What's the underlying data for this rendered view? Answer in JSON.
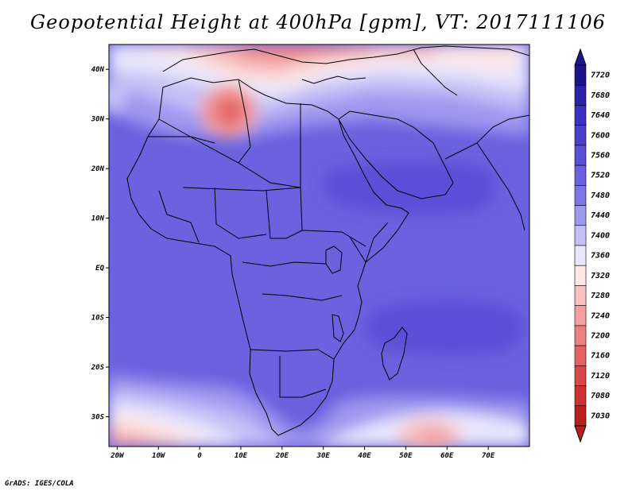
{
  "title": "Geopotential Height at 400hPa [gpm], VT: 2017111106",
  "credit": "GrADS: IGES/COLA",
  "map": {
    "lat_labels": [
      "40N",
      "30N",
      "20N",
      "10N",
      "EQ",
      "10S",
      "20S",
      "30S"
    ],
    "lat_values": [
      40,
      30,
      20,
      10,
      0,
      -10,
      -20,
      -30
    ],
    "lon_labels": [
      "20W",
      "10W",
      "0",
      "10E",
      "20E",
      "30E",
      "40E",
      "50E",
      "60E",
      "70E"
    ],
    "lon_values": [
      -20,
      -10,
      0,
      10,
      20,
      30,
      40,
      50,
      60,
      70
    ],
    "extent": {
      "lon_min": -22,
      "lon_max": 80,
      "lat_min": -36,
      "lat_max": 45
    }
  },
  "colorbar": {
    "labels": [
      "7720",
      "7680",
      "7640",
      "7600",
      "7560",
      "7520",
      "7480",
      "7440",
      "7400",
      "7360",
      "7320",
      "7280",
      "7240",
      "7200",
      "7160",
      "7120",
      "7080",
      "7030"
    ],
    "colors": [
      "#1c148c",
      "#2a22a8",
      "#3a30c2",
      "#4a40cc",
      "#5a50d6",
      "#6a62de",
      "#7e76e6",
      "#9e98ef",
      "#c4c0f6",
      "#e8e6fb",
      "#fde6e6",
      "#f8c2c2",
      "#f2a0a0",
      "#eb8080",
      "#e36262",
      "#d94848",
      "#cc3030",
      "#b82020"
    ]
  }
}
